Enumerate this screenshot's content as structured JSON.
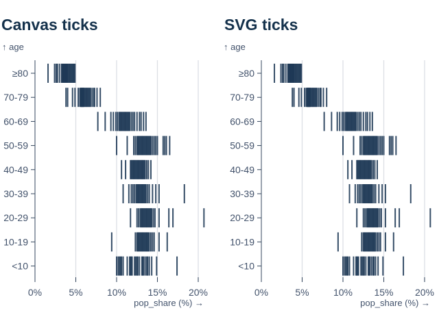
{
  "page": {
    "background": "#ffffff"
  },
  "colors": {
    "tick": "#1f3a56",
    "title": "#14314b",
    "label": "#42526b",
    "axis": "#33455c",
    "grid": "#dcdfe4",
    "background": "#ffffff"
  },
  "charts": [
    {
      "title": "Canvas ticks",
      "y_axis_label": "↑ age",
      "x_axis_label": "pop_share (%) →"
    },
    {
      "title": "SVG ticks",
      "y_axis_label": "↑ age",
      "x_axis_label": "pop_share (%) →"
    }
  ],
  "chart_data": [
    {
      "type": "tick-strip",
      "title": "Canvas ticks",
      "xlabel": "pop_share (%) →",
      "ylabel": "↑ age",
      "xlim": [
        0,
        21
      ],
      "grid": true,
      "x_tick_values": [
        0,
        5,
        10,
        15,
        20
      ],
      "x_tick_labels": [
        "0%",
        "5%",
        "10%",
        "15%",
        "20%"
      ],
      "categories": [
        "≥80",
        "70-79",
        "60-69",
        "50-59",
        "40-49",
        "30-39",
        "20-29",
        "10-19",
        "<10"
      ],
      "series": [
        {
          "name": "≥80",
          "values": [
            1.6,
            2.4,
            2.6,
            2.75,
            3.0,
            3.25,
            3.3,
            3.4,
            3.45,
            3.5,
            3.55,
            3.6,
            3.65,
            3.7,
            3.75,
            3.8,
            3.85,
            3.9,
            3.95,
            4.0,
            4.1,
            4.2,
            4.3,
            4.4,
            4.5,
            4.6,
            4.7,
            4.8,
            4.9
          ]
        },
        {
          "name": "70-79",
          "values": [
            3.8,
            4.0,
            4.6,
            4.9,
            5.3,
            5.5,
            5.6,
            5.65,
            5.7,
            5.75,
            5.8,
            5.85,
            5.9,
            5.95,
            6.0,
            6.1,
            6.2,
            6.3,
            6.4,
            6.5,
            6.6,
            6.7,
            6.8,
            7.0,
            7.2,
            7.3,
            7.6,
            8.0
          ]
        },
        {
          "name": "60-69",
          "values": [
            7.7,
            8.6,
            9.3,
            9.6,
            9.9,
            10.1,
            10.3,
            10.4,
            10.5,
            10.6,
            10.7,
            10.8,
            10.9,
            11.0,
            11.1,
            11.2,
            11.3,
            11.4,
            11.5,
            11.6,
            11.8,
            12.0,
            12.2,
            12.5,
            12.8,
            13.0,
            13.3,
            13.6
          ]
        },
        {
          "name": "50-59",
          "values": [
            10.0,
            11.3,
            12.1,
            12.3,
            12.5,
            12.6,
            12.7,
            12.8,
            12.9,
            13.0,
            13.1,
            13.2,
            13.3,
            13.4,
            13.5,
            13.6,
            13.7,
            13.8,
            13.9,
            14.0,
            14.1,
            14.2,
            14.4,
            14.6,
            14.8,
            15.0,
            15.7,
            15.9,
            16.1,
            16.5
          ]
        },
        {
          "name": "40-49",
          "values": [
            10.6,
            11.1,
            11.7,
            11.8,
            11.9,
            12.0,
            12.1,
            12.2,
            12.3,
            12.4,
            12.5,
            12.6,
            12.7,
            12.8,
            12.9,
            13.0,
            13.1,
            13.2,
            13.3,
            13.4,
            13.5,
            13.7,
            13.9,
            14.2
          ]
        },
        {
          "name": "30-39",
          "values": [
            10.8,
            11.5,
            11.8,
            12.0,
            12.2,
            12.4,
            12.5,
            12.6,
            12.7,
            12.8,
            12.9,
            13.0,
            13.1,
            13.2,
            13.3,
            13.4,
            13.5,
            13.6,
            13.8,
            14.0,
            14.4,
            14.8,
            15.2,
            18.3
          ]
        },
        {
          "name": "20-29",
          "values": [
            11.7,
            12.5,
            12.7,
            12.9,
            13.0,
            13.1,
            13.2,
            13.3,
            13.4,
            13.5,
            13.6,
            13.7,
            13.8,
            13.9,
            14.0,
            14.1,
            14.2,
            14.3,
            14.5,
            14.7,
            15.2,
            16.4,
            16.9,
            20.7
          ]
        },
        {
          "name": "10-19",
          "values": [
            9.4,
            12.3,
            12.5,
            12.6,
            12.7,
            12.8,
            12.9,
            13.0,
            13.1,
            13.2,
            13.3,
            13.4,
            13.5,
            13.6,
            13.7,
            13.8,
            13.9,
            14.0,
            14.2,
            14.4,
            14.6,
            15.2,
            16.2
          ]
        },
        {
          "name": "<10",
          "values": [
            10.0,
            10.2,
            10.35,
            10.5,
            10.6,
            10.8,
            11.3,
            11.6,
            11.7,
            11.8,
            11.9,
            12.2,
            12.35,
            12.5,
            12.6,
            12.8,
            13.1,
            13.2,
            13.3,
            13.5,
            13.7,
            13.8,
            14.0,
            14.3,
            14.9,
            17.4
          ]
        }
      ]
    },
    {
      "type": "tick-strip",
      "title": "SVG ticks",
      "xlabel": "pop_share (%) →",
      "ylabel": "↑ age",
      "xlim": [
        0,
        21
      ],
      "grid": true,
      "x_tick_values": [
        0,
        5,
        10,
        15,
        20
      ],
      "x_tick_labels": [
        "0%",
        "5%",
        "10%",
        "15%",
        "20%"
      ],
      "categories": [
        "≥80",
        "70-79",
        "60-69",
        "50-59",
        "40-49",
        "30-39",
        "20-29",
        "10-19",
        "<10"
      ],
      "same_data_as": "Canvas ticks"
    }
  ]
}
